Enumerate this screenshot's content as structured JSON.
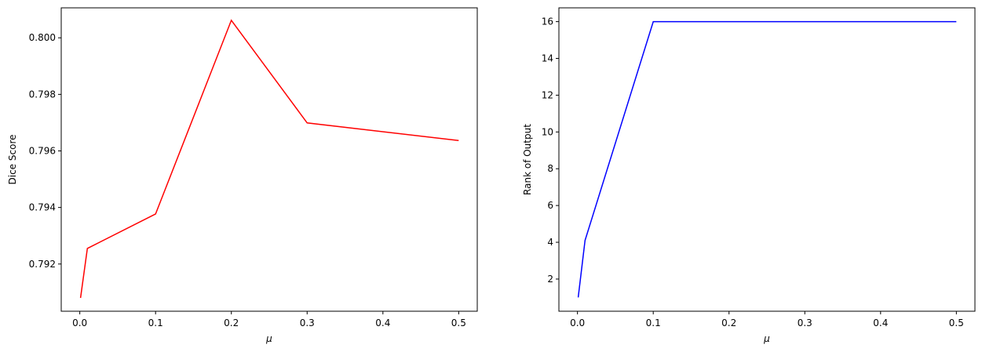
{
  "chart_data": [
    {
      "type": "line",
      "xlabel": "μ",
      "ylabel": "Dice Score",
      "xlim": [
        -0.0245,
        0.5245
      ],
      "ylim": [
        0.79033,
        0.80106
      ],
      "xticks": [
        0.0,
        0.1,
        0.2,
        0.3,
        0.4,
        0.5
      ],
      "xtick_labels": [
        "0.0",
        "0.1",
        "0.2",
        "0.3",
        "0.4",
        "0.5"
      ],
      "yticks": [
        0.792,
        0.794,
        0.796,
        0.798,
        0.8
      ],
      "ytick_labels": [
        "0.792",
        "0.794",
        "0.796",
        "0.798",
        "0.800"
      ],
      "grid": false,
      "series": [
        {
          "color": "#ff0000",
          "x": [
            0.001,
            0.01,
            0.1,
            0.2,
            0.3,
            0.5
          ],
          "y": [
            0.7908,
            0.79255,
            0.79377,
            0.80062,
            0.79699,
            0.79637
          ]
        }
      ]
    },
    {
      "type": "line",
      "xlabel": "μ",
      "ylabel": "Rank of Output",
      "xlim": [
        -0.0245,
        0.5245
      ],
      "ylim": [
        0.25,
        16.75
      ],
      "xticks": [
        0.0,
        0.1,
        0.2,
        0.3,
        0.4,
        0.5
      ],
      "xtick_labels": [
        "0.0",
        "0.1",
        "0.2",
        "0.3",
        "0.4",
        "0.5"
      ],
      "yticks": [
        2,
        4,
        6,
        8,
        10,
        12,
        14,
        16
      ],
      "ytick_labels": [
        "2",
        "4",
        "6",
        "8",
        "10",
        "12",
        "14",
        "16"
      ],
      "grid": false,
      "series": [
        {
          "color": "#0000ff",
          "x": [
            0.001,
            0.01,
            0.1,
            0.2,
            0.3,
            0.5
          ],
          "y": [
            1,
            4.1,
            16,
            16,
            16,
            16
          ]
        }
      ]
    }
  ]
}
